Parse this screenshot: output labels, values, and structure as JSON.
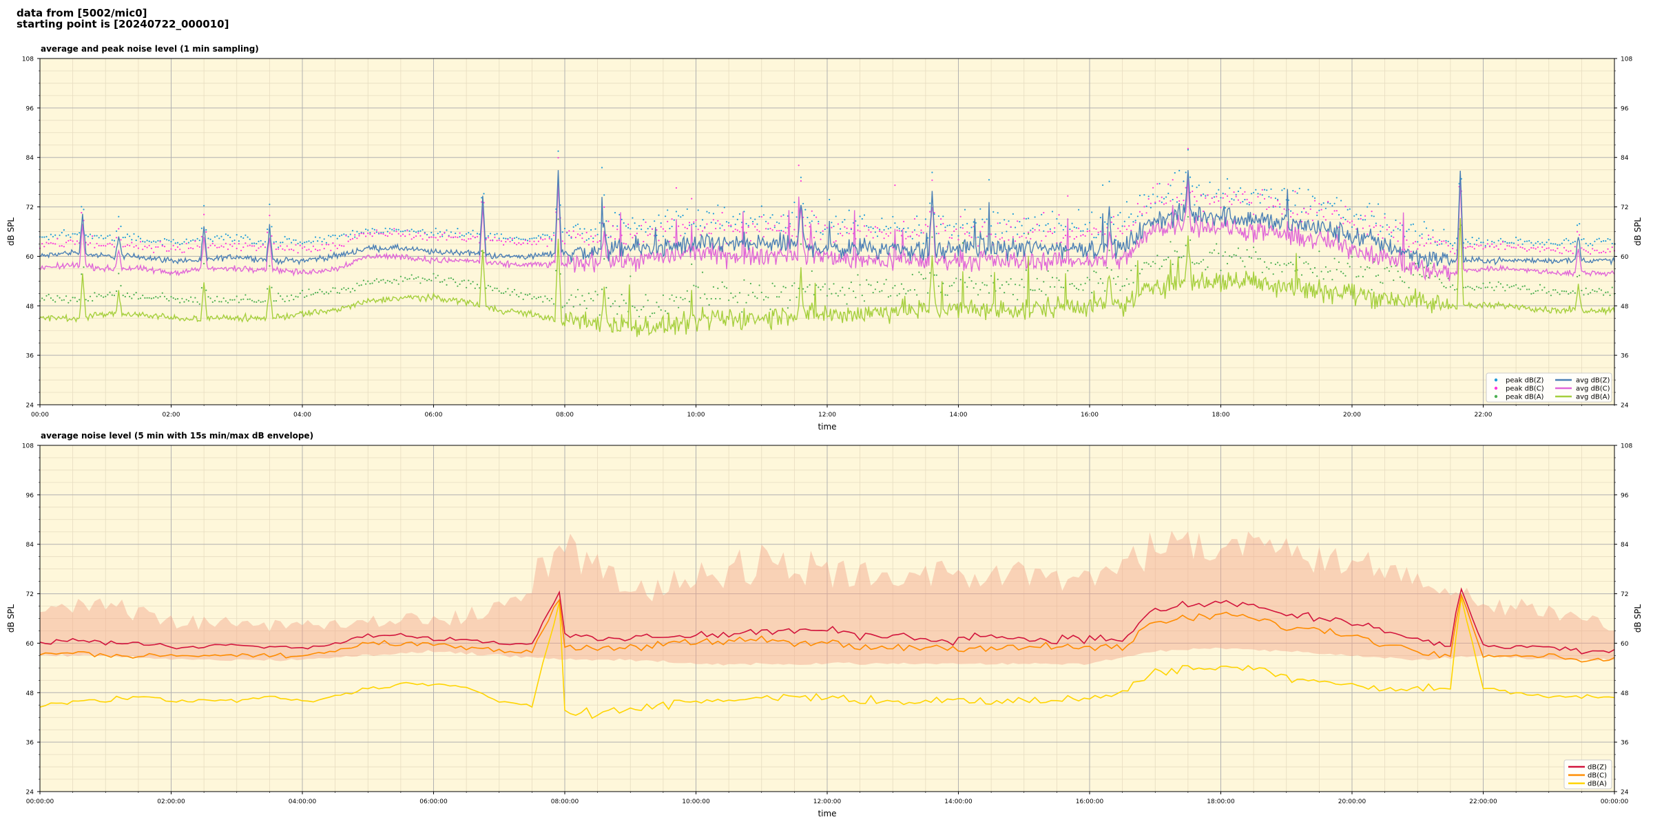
{
  "header": {
    "line1": "data from [5002/mic0]",
    "line2": "starting point is [20240722_000010]"
  },
  "colors": {
    "background": "#fef7da",
    "major_grid": "#b0b0b0",
    "minor_grid": "#e6dcc0",
    "peak_z": "#1f9bd8",
    "peak_c": "#ff33dd",
    "peak_a": "#4caf50",
    "avg_z": "#4a7fb5",
    "avg_c": "#e066d8",
    "avg_a": "#a5cf3c",
    "line_z": "#d2143c",
    "line_c": "#ff8c00",
    "line_a": "#ffd400",
    "envelope": "#f4a58a"
  },
  "chart_data": [
    {
      "type": "line",
      "title": "average and peak noise level (1 min sampling)",
      "xlabel": "time",
      "ylabel": "dB SPL",
      "x_unit": "hours",
      "xlim": [
        0,
        24
      ],
      "ylim": [
        24,
        108
      ],
      "y_ticks": [
        "24",
        "36",
        "48",
        "60",
        "72",
        "84",
        "96",
        "108"
      ],
      "x_ticks": [
        "00:00",
        "02:00",
        "04:00",
        "06:00",
        "08:00",
        "10:00",
        "12:00",
        "14:00",
        "16:00",
        "18:00",
        "20:00",
        "22:00"
      ],
      "grid": true,
      "legend_position": "lower-right",
      "legend": [
        "peak dB(Z)",
        "peak dB(C)",
        "peak dB(A)",
        "avg dB(Z)",
        "avg dB(C)",
        "avg dB(A)"
      ],
      "series": [
        {
          "name": "avg dB(Z)",
          "kind": "line",
          "x": [
            0,
            0.5,
            1,
            1.5,
            2,
            2.5,
            3,
            3.5,
            4,
            4.5,
            5,
            5.5,
            6,
            6.5,
            7,
            7.5,
            8,
            8.5,
            9,
            9.5,
            10,
            10.5,
            11,
            11.5,
            12,
            12.5,
            13,
            13.5,
            14,
            14.5,
            15,
            15.5,
            16,
            16.5,
            17,
            17.5,
            18,
            18.5,
            19,
            19.5,
            20,
            20.5,
            21,
            21.5,
            22,
            22.5,
            23,
            23.5,
            24
          ],
          "values": [
            60,
            61,
            60,
            60,
            59,
            59,
            60,
            59,
            59,
            60,
            62,
            62,
            61,
            61,
            60,
            60,
            61,
            61,
            62,
            62,
            63,
            63,
            63,
            63,
            62,
            62,
            62,
            61,
            62,
            62,
            62,
            62,
            62,
            62,
            69,
            70,
            70,
            69,
            68,
            67,
            65,
            63,
            60,
            59,
            59,
            59,
            59,
            59,
            59
          ]
        },
        {
          "name": "avg dB(C)",
          "kind": "line",
          "x": [
            0,
            0.5,
            1,
            1.5,
            2,
            2.5,
            3,
            3.5,
            4,
            4.5,
            5,
            5.5,
            6,
            6.5,
            7,
            7.5,
            8,
            8.5,
            9,
            9.5,
            10,
            10.5,
            11,
            11.5,
            12,
            12.5,
            13,
            13.5,
            14,
            14.5,
            15,
            15.5,
            16,
            16.5,
            17,
            17.5,
            18,
            18.5,
            19,
            19.5,
            20,
            20.5,
            21,
            21.5,
            22,
            22.5,
            23,
            23.5,
            24
          ],
          "values": [
            57,
            58,
            57,
            57,
            56,
            57,
            57,
            57,
            56,
            57,
            60,
            60,
            59,
            59,
            58,
            58,
            58,
            59,
            59,
            60,
            61,
            60,
            60,
            61,
            60,
            59,
            59,
            59,
            59,
            59,
            59,
            59,
            59,
            59,
            67,
            68,
            67,
            66,
            65,
            64,
            62,
            60,
            57,
            56,
            57,
            57,
            56,
            56,
            56
          ]
        },
        {
          "name": "avg dB(A)",
          "kind": "line",
          "x": [
            0,
            0.5,
            1,
            1.5,
            2,
            2.5,
            3,
            3.5,
            4,
            4.5,
            5,
            5.5,
            6,
            6.5,
            7,
            7.5,
            8,
            8.5,
            9,
            9.5,
            10,
            10.5,
            11,
            11.5,
            12,
            12.5,
            13,
            13.5,
            14,
            14.5,
            15,
            15.5,
            16,
            16.5,
            17,
            17.5,
            18,
            18.5,
            19,
            19.5,
            20,
            20.5,
            21,
            21.5,
            22,
            22.5,
            23,
            23.5,
            24
          ],
          "values": [
            45,
            45,
            46,
            46,
            45,
            45,
            45,
            45,
            46,
            47,
            49,
            50,
            50,
            49,
            47,
            46,
            44,
            44,
            43,
            43,
            44,
            45,
            45,
            46,
            46,
            46,
            47,
            47,
            47,
            47,
            47,
            48,
            48,
            48,
            53,
            54,
            54,
            54,
            53,
            52,
            51,
            50,
            49,
            48,
            48,
            48,
            47,
            47,
            47
          ]
        },
        {
          "name": "peak dB(Z)",
          "kind": "scatter",
          "offset_from": "avg dB(Z)",
          "offset_db": 4
        },
        {
          "name": "peak dB(C)",
          "kind": "scatter",
          "offset_from": "avg dB(C)",
          "offset_db": 5
        },
        {
          "name": "peak dB(A)",
          "kind": "scatter",
          "offset_from": "avg dB(A)",
          "offset_db": 4
        }
      ]
    },
    {
      "type": "line",
      "title": "average noise level (5 min with 15s min/max dB envelope)",
      "xlabel": "time",
      "ylabel": "dB SPL",
      "x_unit": "hours",
      "xlim": [
        0,
        24
      ],
      "ylim": [
        24,
        108
      ],
      "y_ticks": [
        "24",
        "36",
        "48",
        "60",
        "72",
        "84",
        "96",
        "108"
      ],
      "x_ticks": [
        "00:00:00",
        "02:00:00",
        "04:00:00",
        "06:00:00",
        "08:00:00",
        "10:00:00",
        "12:00:00",
        "14:00:00",
        "16:00:00",
        "18:00:00",
        "20:00:00",
        "22:00:00",
        "00:00:00"
      ],
      "grid": true,
      "legend_position": "lower-right",
      "legend": [
        "dB(Z)",
        "dB(C)",
        "dB(A)"
      ],
      "series": [
        {
          "name": "dB(Z)",
          "kind": "line",
          "x": [
            0,
            0.5,
            1,
            1.5,
            2,
            2.5,
            3,
            3.5,
            4,
            4.5,
            5,
            5.5,
            6,
            6.5,
            7,
            7.5,
            7.95,
            8,
            8.5,
            9,
            9.5,
            10,
            10.5,
            11,
            11.5,
            12,
            12.5,
            13,
            13.5,
            14,
            14.5,
            15,
            15.5,
            16,
            16.5,
            17,
            17.5,
            18,
            18.5,
            19,
            19.5,
            20,
            20.5,
            21,
            21.5,
            21.65,
            22,
            22.5,
            23,
            23.5,
            24
          ],
          "values": [
            60,
            61,
            60,
            60,
            59,
            59,
            60,
            59,
            59,
            60,
            62,
            62,
            61,
            61,
            60,
            60,
            73,
            62,
            61,
            61,
            62,
            62,
            62,
            63,
            63,
            63,
            62,
            62,
            61,
            61,
            62,
            61,
            61,
            61,
            61,
            68,
            69,
            70,
            69,
            67,
            66,
            65,
            63,
            61,
            59,
            74,
            59,
            59,
            59,
            58,
            58
          ]
        },
        {
          "name": "dB(C)",
          "kind": "line",
          "x": [
            0,
            0.5,
            1,
            1.5,
            2,
            2.5,
            3,
            3.5,
            4,
            4.5,
            5,
            5.5,
            6,
            6.5,
            7,
            7.5,
            7.95,
            8,
            8.5,
            9,
            9.5,
            10,
            10.5,
            11,
            11.5,
            12,
            12.5,
            13,
            13.5,
            14,
            14.5,
            15,
            15.5,
            16,
            16.5,
            17,
            17.5,
            18,
            18.5,
            19,
            19.5,
            20,
            20.5,
            21,
            21.5,
            21.65,
            22,
            22.5,
            23,
            23.5,
            24
          ],
          "values": [
            57,
            58,
            57,
            57,
            57,
            57,
            57,
            57,
            57,
            58,
            60,
            60,
            60,
            59,
            58,
            58,
            72,
            59,
            59,
            59,
            60,
            60,
            60,
            61,
            60,
            60,
            59,
            59,
            59,
            59,
            59,
            59,
            59,
            59,
            59,
            65,
            66,
            67,
            66,
            64,
            63,
            62,
            60,
            58,
            57,
            73,
            57,
            57,
            57,
            56,
            56
          ]
        },
        {
          "name": "dB(A)",
          "kind": "line",
          "x": [
            0,
            0.5,
            1,
            1.5,
            2,
            2.5,
            3,
            3.5,
            4,
            4.5,
            5,
            5.5,
            6,
            6.5,
            7,
            7.5,
            7.95,
            8,
            8.5,
            9,
            9.5,
            10,
            10.5,
            11,
            11.5,
            12,
            12.5,
            13,
            13.5,
            14,
            14.5,
            15,
            15.5,
            16,
            16.5,
            17,
            17.5,
            18,
            18.5,
            19,
            19.5,
            20,
            20.5,
            21,
            21.5,
            21.65,
            22,
            22.5,
            23,
            23.5,
            24
          ],
          "values": [
            45,
            46,
            46,
            47,
            46,
            46,
            46,
            47,
            46,
            47,
            49,
            50,
            50,
            49,
            46,
            45,
            72,
            44,
            43,
            44,
            45,
            46,
            46,
            47,
            47,
            47,
            46,
            46,
            46,
            46,
            46,
            46,
            46,
            47,
            48,
            53,
            54,
            54,
            54,
            52,
            51,
            50,
            49,
            49,
            49,
            72,
            49,
            48,
            47,
            47,
            47
          ]
        },
        {
          "name": "envelope",
          "kind": "band",
          "x": [
            0,
            1,
            2,
            3,
            4,
            5,
            6,
            7,
            8,
            9,
            10,
            11,
            12,
            13,
            14,
            15,
            16,
            17,
            18,
            19,
            20,
            21,
            22,
            23,
            24
          ],
          "low": [
            57,
            57,
            56,
            56,
            56,
            57,
            58,
            57,
            56,
            56,
            55,
            55,
            55,
            55,
            55,
            55,
            55,
            58,
            59,
            58,
            57,
            56,
            57,
            56,
            56
          ],
          "high": [
            70,
            72,
            67,
            66,
            66,
            68,
            67,
            70,
            88,
            77,
            80,
            84,
            82,
            80,
            82,
            80,
            82,
            88,
            88,
            86,
            83,
            80,
            72,
            70,
            66
          ]
        }
      ]
    }
  ]
}
